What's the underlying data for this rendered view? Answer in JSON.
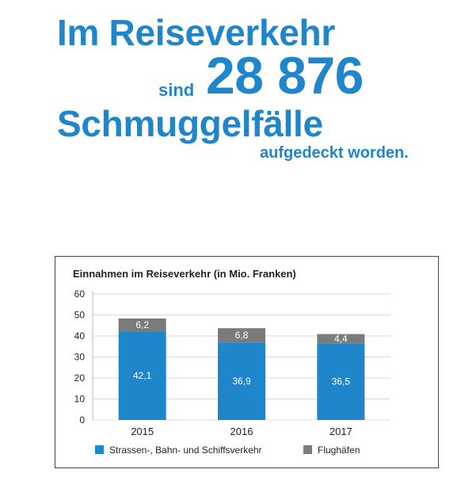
{
  "headline": {
    "line1": "Im Reiseverkehr",
    "line2": "sind",
    "number": "28 876",
    "line3": "Schmuggelfälle",
    "line4": "aufgedeckt worden."
  },
  "colors": {
    "headline": "#1f86cc",
    "strassen": "#1f86cc",
    "flughaefen": "#7b7b7b",
    "grid": "#d9d9d9"
  },
  "chart_data": {
    "type": "bar",
    "stacked": true,
    "title": "Einnahmen im Reiseverkehr (in Mio. Franken)",
    "categories": [
      "2015",
      "2016",
      "2017"
    ],
    "series": [
      {
        "name": "Strassen-, Bahn- und Schiffsverkehr",
        "values": [
          42.1,
          36.9,
          36.5
        ],
        "labels": [
          "42,1",
          "36,9",
          "36,5"
        ],
        "color": "#1f86cc"
      },
      {
        "name": "Flughäfen",
        "values": [
          6.2,
          6.8,
          4.4
        ],
        "labels": [
          "6,2",
          "6,8",
          "4,4"
        ],
        "color": "#7b7b7b"
      }
    ],
    "ylim": [
      0,
      60
    ],
    "yticks": [
      "0",
      "10",
      "20",
      "30",
      "40",
      "50",
      "60"
    ],
    "grid": true,
    "legend": "bottom"
  }
}
